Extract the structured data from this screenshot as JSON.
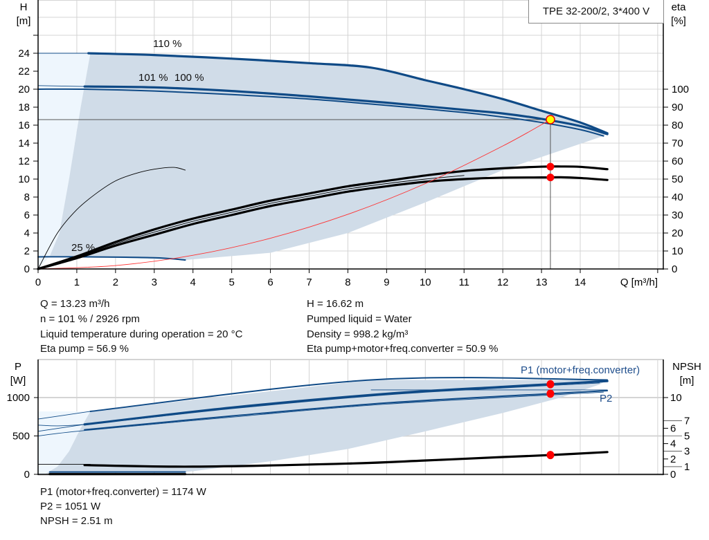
{
  "chart_data": [
    {
      "type": "line",
      "title": "TPE 32-200/2, 3*400 V",
      "xlabel": "Q [m³/h]",
      "ylabel": [
        "H",
        "[m]"
      ],
      "y2label": [
        "eta",
        "[%]"
      ],
      "xlim": [
        0,
        16.15
      ],
      "ylim": [
        0,
        29.9
      ],
      "y2lim": [
        0,
        115
      ],
      "x_ticks": [
        0,
        1,
        2,
        3,
        4,
        5,
        6,
        7,
        8,
        9,
        10,
        11,
        12,
        13,
        14
      ],
      "y_ticks": [
        0,
        2,
        4,
        6,
        8,
        10,
        12,
        14,
        16,
        18,
        20,
        22,
        24
      ],
      "y2_ticks": [
        0,
        10,
        20,
        30,
        40,
        50,
        60,
        70,
        80,
        90,
        100
      ],
      "grid": true,
      "light_region": [
        [
          0,
          0
        ],
        [
          0,
          24
        ],
        [
          1.35,
          24
        ],
        [
          1.1,
          18
        ],
        [
          0.8,
          10
        ],
        [
          0.55,
          4
        ],
        [
          0.3,
          1.4
        ],
        [
          0,
          0
        ]
      ],
      "operating_region": [
        [
          1.35,
          24
        ],
        [
          3,
          23.8
        ],
        [
          5,
          23.4
        ],
        [
          7,
          22.9
        ],
        [
          8.6,
          22.4
        ],
        [
          10,
          21
        ],
        [
          11,
          20
        ],
        [
          12,
          18.9
        ],
        [
          13,
          17.6
        ],
        [
          14,
          16.3
        ],
        [
          14.7,
          15.1
        ],
        [
          14.6,
          14.8
        ],
        [
          12,
          11
        ],
        [
          10,
          7.4
        ],
        [
          8,
          4
        ],
        [
          6,
          1.8
        ],
        [
          3.8,
          1.0
        ],
        [
          1.2,
          1.35
        ],
        [
          0.3,
          1.4
        ],
        [
          0.55,
          4
        ],
        [
          0.8,
          10
        ],
        [
          1.1,
          18
        ]
      ],
      "series": [
        {
          "axis": "H",
          "label": "110 %",
          "color": "#0f4a86",
          "style": "thick",
          "points": [
            [
              1.3,
              24
            ],
            [
              3,
              23.8
            ],
            [
              5,
              23.4
            ],
            [
              7,
              22.9
            ],
            [
              8.6,
              22.4
            ],
            [
              10,
              21
            ],
            [
              11,
              20
            ],
            [
              12,
              18.9
            ],
            [
              13,
              17.6
            ],
            [
              14,
              16.3
            ],
            [
              14.7,
              15.1
            ]
          ]
        },
        {
          "axis": "H",
          "color": "#0f4a86",
          "style": "thin",
          "points": [
            [
              0,
              24
            ],
            [
              1.3,
              24
            ]
          ]
        },
        {
          "axis": "H",
          "label": "101 %",
          "color": "#0f4a86",
          "style": "thick",
          "points": [
            [
              1.2,
              20.3
            ],
            [
              3,
              20.2
            ],
            [
              5,
              19.8
            ],
            [
              7,
              19.2
            ],
            [
              9,
              18.5
            ],
            [
              11,
              17.7
            ],
            [
              12,
              17.3
            ],
            [
              13,
              16.7
            ],
            [
              14,
              15.9
            ],
            [
              14.7,
              15.0
            ]
          ]
        },
        {
          "axis": "H",
          "color": "#0f4a86",
          "style": "thin",
          "points": [
            [
              0,
              20.4
            ],
            [
              1.2,
              20.3
            ]
          ]
        },
        {
          "axis": "H",
          "label": "100 %",
          "color": "#0f4a86",
          "style": "medium",
          "points": [
            [
              0,
              20.0
            ],
            [
              1.2,
              20.0
            ],
            [
              3,
              19.8
            ],
            [
              5,
              19.4
            ],
            [
              7,
              18.9
            ],
            [
              9,
              18.2
            ],
            [
              11,
              17.4
            ],
            [
              12,
              16.9
            ],
            [
              13,
              16.3
            ],
            [
              14,
              15.5
            ],
            [
              14.6,
              14.8
            ]
          ]
        },
        {
          "axis": "H",
          "label": "25 %",
          "color": "#0f4a86",
          "style": "medium",
          "points": [
            [
              0,
              1.35
            ],
            [
              1.2,
              1.35
            ],
            [
              3,
              1.25
            ],
            [
              3.8,
              1.0
            ]
          ]
        },
        {
          "axis": "eta",
          "color": "#000000",
          "style": "thick",
          "points": [
            [
              0,
              0
            ],
            [
              1,
              7
            ],
            [
              2,
              15
            ],
            [
              3,
              22
            ],
            [
              4,
              28
            ],
            [
              5,
              33
            ],
            [
              6,
              38
            ],
            [
              7,
              42
            ],
            [
              8,
              46
            ],
            [
              9,
              49
            ],
            [
              10,
              52
            ],
            [
              11,
              54.5
            ],
            [
              12,
              56
            ],
            [
              13,
              56.9
            ],
            [
              13.5,
              57
            ],
            [
              14,
              56.8
            ],
            [
              14.7,
              55.5
            ]
          ]
        },
        {
          "axis": "eta",
          "color": "#000000",
          "style": "thick",
          "points": [
            [
              0,
              0
            ],
            [
              1,
              6
            ],
            [
              2,
              13
            ],
            [
              3,
              19
            ],
            [
              4,
              25
            ],
            [
              5,
              30
            ],
            [
              6,
              35
            ],
            [
              7,
              39
            ],
            [
              8,
              43
            ],
            [
              9,
              46
            ],
            [
              10,
              48.5
            ],
            [
              11,
              50
            ],
            [
              12,
              50.8
            ],
            [
              13,
              50.9
            ],
            [
              13.5,
              51
            ],
            [
              14,
              50.6
            ],
            [
              14.7,
              49.5
            ]
          ]
        },
        {
          "axis": "eta",
          "color": "#000000",
          "style": "thin",
          "points": [
            [
              0,
              0
            ],
            [
              1,
              6.5
            ],
            [
              2,
              14
            ],
            [
              3,
              20.5
            ],
            [
              4,
              26.5
            ],
            [
              5,
              31.5
            ],
            [
              6,
              36.5
            ],
            [
              7,
              40.5
            ],
            [
              8,
              44.5
            ],
            [
              9,
              47.5
            ],
            [
              10,
              50
            ],
            [
              11,
              52
            ]
          ]
        },
        {
          "axis": "eta",
          "color": "#000000",
          "style": "thin",
          "points": [
            [
              0,
              0
            ],
            [
              0.5,
              20
            ],
            [
              1,
              33
            ],
            [
              1.5,
              42
            ],
            [
              2,
              49
            ],
            [
              2.5,
              53
            ],
            [
              3,
              55.5
            ],
            [
              3.5,
              56.5
            ],
            [
              3.8,
              55
            ]
          ]
        },
        {
          "axis": "H",
          "color": "#ff3030",
          "style": "thin",
          "points": [
            [
              0,
              0
            ],
            [
              2,
              0.38
            ],
            [
              4,
              1.52
            ],
            [
              6,
              3.42
            ],
            [
              8,
              6.08
            ],
            [
              10,
              9.5
            ],
            [
              12,
              13.68
            ],
            [
              13.23,
              16.62
            ]
          ]
        }
      ],
      "duty_point": {
        "Q": 13.23,
        "H": 16.62,
        "color": "#ffff00"
      },
      "eta_points": [
        56.9,
        50.9
      ]
    },
    {
      "type": "line",
      "ylabel": [
        "P",
        "[W]"
      ],
      "y2label": [
        "NPSH",
        "[m]"
      ],
      "xlim": [
        0,
        16.15
      ],
      "ylim": [
        0,
        1495
      ],
      "y_ticks": [
        0,
        500,
        1000
      ],
      "y2_ticks": [
        0,
        1,
        2,
        3,
        4,
        5,
        6,
        7,
        10
      ],
      "grid": true,
      "light_region": [
        [
          0,
          0
        ],
        [
          0,
          820
        ],
        [
          1.35,
          820
        ],
        [
          1.1,
          600
        ],
        [
          0.8,
          300
        ],
        [
          0.5,
          100
        ],
        [
          0.2,
          10
        ],
        [
          0,
          0
        ]
      ],
      "operating_region": [
        [
          1.35,
          820
        ],
        [
          8.6,
          1230
        ],
        [
          14.7,
          1230
        ],
        [
          14.5,
          1170
        ],
        [
          13.5,
          1000
        ],
        [
          12,
          800
        ],
        [
          10,
          560
        ],
        [
          8,
          330
        ],
        [
          6,
          170
        ],
        [
          4,
          40
        ],
        [
          3.8,
          30
        ],
        [
          0.2,
          10
        ],
        [
          0.5,
          100
        ],
        [
          0.8,
          300
        ],
        [
          1.1,
          600
        ]
      ],
      "series_labels": [
        "P1 (motor+freq.converter)",
        "P2"
      ],
      "series": [
        {
          "axis": "P",
          "color": "#0f4a86",
          "style": "medium",
          "points": [
            [
              1.35,
              820
            ],
            [
              8.6,
              1230
            ],
            [
              14.7,
              1230
            ]
          ]
        },
        {
          "axis": "P",
          "color": "#0f4a86",
          "style": "thin",
          "points": [
            [
              0,
              720
            ],
            [
              1.35,
              820
            ]
          ]
        },
        {
          "axis": "P",
          "color": "#0f4a86",
          "style": "thick",
          "points": [
            [
              1.2,
              650
            ],
            [
              5,
              870
            ],
            [
              9,
              1050
            ],
            [
              12,
              1140
            ],
            [
              13.23,
              1174
            ],
            [
              14.7,
              1215
            ]
          ]
        },
        {
          "axis": "P",
          "color": "#0f4a86",
          "style": "thin",
          "points": [
            [
              0,
              640
            ],
            [
              1.2,
              650
            ],
            [
              5,
              855
            ],
            [
              9,
              1035
            ],
            [
              12,
              1125
            ],
            [
              14.5,
              1190
            ]
          ]
        },
        {
          "axis": "P",
          "color": "#0f4a86",
          "style": "thin",
          "points": [
            [
              0,
              560
            ],
            [
              1.2,
              650
            ]
          ]
        },
        {
          "axis": "P",
          "color": "#0f4a86",
          "style": "thin",
          "points": [
            [
              8.6,
              1100
            ],
            [
              14.7,
              1100
            ]
          ]
        },
        {
          "axis": "P",
          "color": "#0f4a86",
          "style": "medium",
          "points": [
            [
              1.2,
              580
            ],
            [
              5,
              760
            ],
            [
              9,
              930
            ],
            [
              13.23,
              1051
            ],
            [
              14.7,
              1090
            ]
          ]
        },
        {
          "axis": "P",
          "color": "#0f4a86",
          "style": "thin",
          "points": [
            [
              0,
              500
            ],
            [
              1.2,
              570
            ],
            [
              5,
              745
            ],
            [
              9,
              915
            ],
            [
              14.6,
              1070
            ]
          ]
        },
        {
          "axis": "P",
          "color": "#0f4a86",
          "style": "medium",
          "points": [
            [
              0.3,
              30
            ],
            [
              3.8,
              30
            ]
          ]
        },
        {
          "axis": "P",
          "color": "#000000",
          "style": "thin",
          "points": [
            [
              0,
              130
            ],
            [
              1.35,
              130
            ]
          ]
        },
        {
          "axis": "NPSH",
          "color": "#000000",
          "style": "thick",
          "points": [
            [
              1.2,
              1.2
            ],
            [
              4,
              1.0
            ],
            [
              8,
              1.4
            ],
            [
              10,
              1.8
            ],
            [
              12,
              2.25
            ],
            [
              13.23,
              2.51
            ],
            [
              14.7,
              2.9
            ]
          ]
        },
        {
          "axis": "NPSH",
          "color": "#000000",
          "style": "thick",
          "points": [
            [
              0.3,
              0.03
            ],
            [
              3.8,
              0.03
            ]
          ]
        }
      ],
      "op_points": {
        "Q": 13.23,
        "P1": 1174,
        "P2": 1051,
        "NPSH": 2.51
      }
    }
  ],
  "readouts": {
    "left": [
      "Q = 13.23 m³/h",
      "n = 101 % / 2926 rpm",
      "Liquid temperature during operation = 20 °C",
      "Eta pump = 56.9 %"
    ],
    "right": [
      "H = 16.62 m",
      "Pumped liquid = Water",
      "Density = 998.2 kg/m³",
      "Eta pump+motor+freq.converter = 50.9 %"
    ],
    "bottom": [
      "P1 (motor+freq.converter) = 1174 W",
      "P2 = 1051 W",
      "NPSH = 2.51 m"
    ]
  },
  "colors": {
    "region": "#d0dce8",
    "light_region": "#eef6fd",
    "curve_blue": "#0f4a86",
    "label_blue": "#1f4e8c",
    "grid": "#d4d4d4",
    "point_red": "#ff0000"
  }
}
